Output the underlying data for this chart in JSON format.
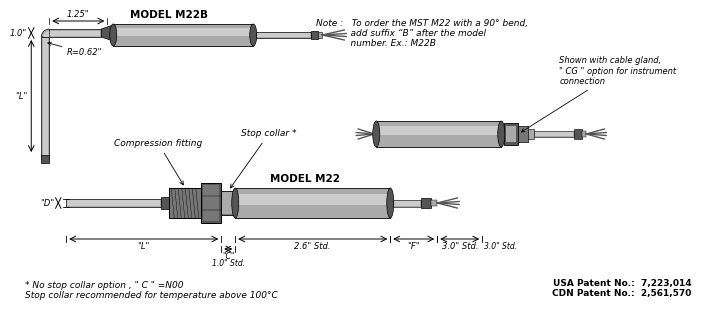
{
  "background_color": "#ffffff",
  "note_text_line1": "Note :   To order the MST M22 with a 90° bend,",
  "note_text_line2": "            add suffix “B” after the model",
  "note_text_line3": "            number. Ex.: M22B",
  "model_m22b_label": "MODEL M22B",
  "model_m22_label": "MODEL M22",
  "dim_1_25": "1.25\"",
  "dim_1_0": "1.0\"",
  "dim_L_left": "\"L\"",
  "dim_D": "\"D\"",
  "dim_R": "R=0.62\"",
  "dim_L_bottom": "\"L\"",
  "dim_C_line1": "\"C\"",
  "dim_C_line2": "1.0\" Std.",
  "dim_2_6": "2.6\" Std.",
  "dim_F": "\"F\"",
  "dim_3_0": "3.0\" Std.",
  "label_compression": "Compression fitting",
  "label_stop_collar": "Stop collar *",
  "label_cable_gland_line1": "Shown with cable gland,",
  "label_cable_gland_line2": "\" CG \" option for instrument",
  "label_cable_gland_line3": "connection",
  "footnote1": "* No stop collar option , \" C \" =N00",
  "footnote2": "Stop collar recommended for temperature above 100°C",
  "patent1": "USA Patent No.:  7,223,014",
  "patent2": "CDN Patent No.:  2,561,570",
  "gl": "#cccccc",
  "gm": "#aaaaaa",
  "gd": "#777777",
  "gdd": "#555555",
  "lc": "#000000",
  "tc": "#000000"
}
